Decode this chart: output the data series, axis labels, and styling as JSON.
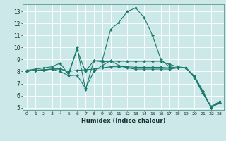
{
  "xlabel": "Humidex (Indice chaleur)",
  "bg_color": "#cce8e8",
  "grid_color": "#ffffff",
  "line_color": "#1a7a6e",
  "xlim": [
    -0.5,
    23.5
  ],
  "ylim": [
    4.8,
    13.6
  ],
  "yticks": [
    5,
    6,
    7,
    8,
    9,
    10,
    11,
    12,
    13
  ],
  "xticks": [
    0,
    1,
    2,
    3,
    4,
    5,
    6,
    7,
    8,
    9,
    10,
    11,
    12,
    13,
    14,
    15,
    16,
    17,
    18,
    19,
    20,
    21,
    22,
    23
  ],
  "series": [
    {
      "x": [
        0,
        1,
        2,
        3,
        4,
        5,
        6,
        7,
        8,
        9,
        10,
        11,
        12,
        13,
        14,
        15,
        16,
        17,
        18,
        19,
        20,
        21,
        22,
        23
      ],
      "y": [
        8.1,
        8.2,
        8.3,
        8.4,
        8.7,
        7.7,
        10.0,
        6.5,
        8.9,
        8.9,
        11.5,
        12.1,
        13.0,
        13.3,
        12.5,
        11.0,
        9.0,
        8.4,
        8.3,
        8.3,
        7.5,
        6.2,
        5.1,
        5.5
      ]
    },
    {
      "x": [
        0,
        1,
        2,
        3,
        4,
        5,
        6,
        7,
        8,
        9,
        10,
        11,
        12,
        13,
        14,
        15,
        16,
        17,
        18,
        19,
        20,
        21,
        22,
        23
      ],
      "y": [
        8.05,
        8.1,
        8.15,
        8.2,
        8.25,
        7.9,
        9.8,
        8.0,
        8.9,
        8.8,
        8.85,
        8.85,
        8.85,
        8.85,
        8.85,
        8.85,
        8.85,
        8.6,
        8.4,
        8.3,
        7.6,
        6.4,
        5.0,
        5.4
      ]
    },
    {
      "x": [
        0,
        1,
        2,
        3,
        4,
        5,
        6,
        7,
        8,
        9,
        10,
        11,
        12,
        13,
        14,
        15,
        16,
        17,
        18,
        19,
        20,
        21,
        22,
        23
      ],
      "y": [
        8.05,
        8.1,
        8.15,
        8.2,
        8.0,
        7.65,
        7.7,
        6.6,
        8.0,
        8.5,
        8.9,
        8.5,
        8.3,
        8.2,
        8.2,
        8.2,
        8.2,
        8.2,
        8.3,
        8.3,
        7.6,
        6.3,
        5.0,
        5.5
      ]
    },
    {
      "x": [
        0,
        1,
        2,
        3,
        4,
        5,
        6,
        7,
        8,
        9,
        10,
        11,
        12,
        13,
        14,
        15,
        16,
        17,
        18,
        19,
        20,
        21,
        22,
        23
      ],
      "y": [
        8.0,
        8.1,
        8.1,
        8.2,
        8.2,
        8.0,
        8.1,
        8.15,
        8.2,
        8.3,
        8.4,
        8.4,
        8.4,
        8.35,
        8.35,
        8.35,
        8.35,
        8.3,
        8.3,
        8.3,
        7.5,
        6.2,
        5.0,
        5.4
      ]
    }
  ]
}
